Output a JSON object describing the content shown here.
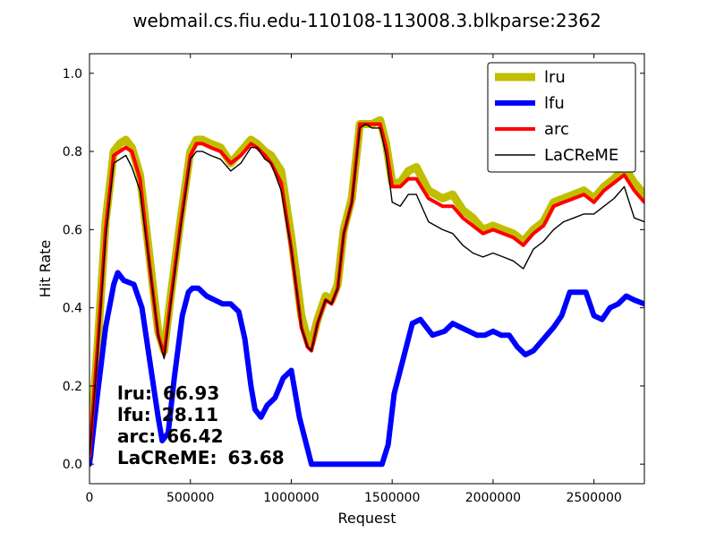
{
  "chart_data": {
    "type": "line",
    "title": "webmail.cs.fiu.edu-110108-113008.3.blkparse:2362",
    "xlabel": "Request",
    "ylabel": "Hit Rate",
    "xlim": [
      0,
      2750000
    ],
    "ylim": [
      -0.05,
      1.05
    ],
    "xticks": [
      0,
      500000,
      1000000,
      1500000,
      2000000,
      2500000
    ],
    "xtick_labels": [
      "0",
      "500000",
      "1000000",
      "1500000",
      "2000000",
      "2500000"
    ],
    "yticks": [
      0.0,
      0.2,
      0.4,
      0.6,
      0.8,
      1.0
    ],
    "ytick_labels": [
      "0.0",
      "0.2",
      "0.4",
      "0.6",
      "0.8",
      "1.0"
    ],
    "grid": false,
    "legend_position": "top-right",
    "series": [
      {
        "name": "lru",
        "color": "#bfbf00",
        "x": [
          0,
          40000,
          80000,
          120000,
          150000,
          180000,
          210000,
          250000,
          300000,
          340000,
          370000,
          400000,
          450000,
          500000,
          530000,
          560000,
          600000,
          650000,
          700000,
          750000,
          800000,
          830000,
          870000,
          900000,
          950000,
          1000000,
          1050000,
          1080000,
          1100000,
          1130000,
          1170000,
          1200000,
          1230000,
          1260000,
          1300000,
          1340000,
          1370000,
          1400000,
          1440000,
          1470000,
          1500000,
          1540000,
          1580000,
          1620000,
          1680000,
          1750000,
          1800000,
          1850000,
          1900000,
          1950000,
          2000000,
          2050000,
          2100000,
          2150000,
          2200000,
          2250000,
          2300000,
          2350000,
          2400000,
          2450000,
          2500000,
          2550000,
          2600000,
          2650000,
          2700000,
          2750000
        ],
        "y": [
          0.02,
          0.3,
          0.62,
          0.8,
          0.82,
          0.83,
          0.81,
          0.74,
          0.52,
          0.34,
          0.29,
          0.42,
          0.62,
          0.8,
          0.83,
          0.83,
          0.82,
          0.81,
          0.77,
          0.8,
          0.83,
          0.82,
          0.8,
          0.79,
          0.75,
          0.58,
          0.38,
          0.32,
          0.31,
          0.37,
          0.43,
          0.42,
          0.46,
          0.6,
          0.68,
          0.87,
          0.87,
          0.87,
          0.88,
          0.82,
          0.72,
          0.72,
          0.75,
          0.76,
          0.7,
          0.68,
          0.69,
          0.65,
          0.63,
          0.6,
          0.61,
          0.6,
          0.59,
          0.57,
          0.6,
          0.62,
          0.67,
          0.68,
          0.69,
          0.7,
          0.68,
          0.71,
          0.73,
          0.76,
          0.72,
          0.69
        ]
      },
      {
        "name": "lfu",
        "color": "#0000ff",
        "x": [
          0,
          40000,
          80000,
          120000,
          140000,
          170000,
          220000,
          260000,
          300000,
          340000,
          360000,
          390000,
          420000,
          460000,
          490000,
          510000,
          540000,
          580000,
          620000,
          660000,
          700000,
          740000,
          770000,
          800000,
          820000,
          850000,
          880000,
          920000,
          960000,
          1000000,
          1040000,
          1100000,
          1200000,
          1300000,
          1400000,
          1450000,
          1480000,
          1510000,
          1560000,
          1600000,
          1640000,
          1700000,
          1760000,
          1800000,
          1840000,
          1880000,
          1920000,
          1960000,
          2000000,
          2040000,
          2080000,
          2120000,
          2160000,
          2200000,
          2250000,
          2300000,
          2340000,
          2380000,
          2420000,
          2460000,
          2500000,
          2540000,
          2580000,
          2620000,
          2660000,
          2700000,
          2750000
        ],
        "y": [
          0.0,
          0.18,
          0.35,
          0.46,
          0.49,
          0.47,
          0.46,
          0.4,
          0.26,
          0.12,
          0.06,
          0.08,
          0.22,
          0.38,
          0.44,
          0.45,
          0.45,
          0.43,
          0.42,
          0.41,
          0.41,
          0.39,
          0.32,
          0.2,
          0.14,
          0.12,
          0.15,
          0.17,
          0.22,
          0.24,
          0.12,
          0.0,
          0.0,
          0.0,
          0.0,
          0.0,
          0.05,
          0.18,
          0.28,
          0.36,
          0.37,
          0.33,
          0.34,
          0.36,
          0.35,
          0.34,
          0.33,
          0.33,
          0.34,
          0.33,
          0.33,
          0.3,
          0.28,
          0.29,
          0.32,
          0.35,
          0.38,
          0.44,
          0.44,
          0.44,
          0.38,
          0.37,
          0.4,
          0.41,
          0.43,
          0.42,
          0.41
        ]
      },
      {
        "name": "arc",
        "color": "#ff0000",
        "x": [
          0,
          40000,
          80000,
          120000,
          150000,
          180000,
          210000,
          250000,
          300000,
          340000,
          370000,
          400000,
          450000,
          500000,
          530000,
          560000,
          600000,
          650000,
          700000,
          750000,
          800000,
          830000,
          870000,
          900000,
          950000,
          1000000,
          1050000,
          1080000,
          1100000,
          1130000,
          1170000,
          1200000,
          1230000,
          1260000,
          1300000,
          1340000,
          1370000,
          1400000,
          1440000,
          1470000,
          1500000,
          1540000,
          1580000,
          1620000,
          1680000,
          1750000,
          1800000,
          1850000,
          1900000,
          1950000,
          2000000,
          2050000,
          2100000,
          2150000,
          2200000,
          2250000,
          2300000,
          2350000,
          2400000,
          2450000,
          2500000,
          2550000,
          2600000,
          2650000,
          2700000,
          2750000
        ],
        "y": [
          0.02,
          0.3,
          0.6,
          0.79,
          0.8,
          0.81,
          0.8,
          0.73,
          0.5,
          0.33,
          0.28,
          0.41,
          0.61,
          0.79,
          0.82,
          0.82,
          0.81,
          0.8,
          0.77,
          0.79,
          0.82,
          0.81,
          0.79,
          0.77,
          0.72,
          0.55,
          0.35,
          0.3,
          0.29,
          0.36,
          0.42,
          0.41,
          0.45,
          0.59,
          0.67,
          0.87,
          0.87,
          0.87,
          0.87,
          0.81,
          0.71,
          0.71,
          0.73,
          0.73,
          0.68,
          0.66,
          0.66,
          0.63,
          0.61,
          0.59,
          0.6,
          0.59,
          0.58,
          0.56,
          0.59,
          0.61,
          0.66,
          0.67,
          0.68,
          0.69,
          0.67,
          0.7,
          0.72,
          0.74,
          0.7,
          0.67
        ]
      },
      {
        "name": "LaCReME",
        "color": "#000000",
        "x": [
          0,
          40000,
          80000,
          120000,
          150000,
          180000,
          210000,
          250000,
          300000,
          340000,
          370000,
          400000,
          450000,
          500000,
          530000,
          560000,
          600000,
          650000,
          700000,
          750000,
          800000,
          830000,
          870000,
          900000,
          950000,
          1000000,
          1050000,
          1080000,
          1100000,
          1130000,
          1170000,
          1200000,
          1230000,
          1260000,
          1300000,
          1340000,
          1370000,
          1400000,
          1440000,
          1470000,
          1500000,
          1540000,
          1580000,
          1620000,
          1680000,
          1750000,
          1800000,
          1850000,
          1900000,
          1950000,
          2000000,
          2050000,
          2100000,
          2150000,
          2200000,
          2250000,
          2300000,
          2350000,
          2400000,
          2450000,
          2500000,
          2550000,
          2600000,
          2650000,
          2700000,
          2750000
        ],
        "y": [
          0.02,
          0.28,
          0.58,
          0.77,
          0.78,
          0.79,
          0.76,
          0.7,
          0.5,
          0.33,
          0.27,
          0.4,
          0.6,
          0.78,
          0.8,
          0.8,
          0.79,
          0.78,
          0.75,
          0.77,
          0.81,
          0.81,
          0.78,
          0.77,
          0.7,
          0.55,
          0.35,
          0.3,
          0.29,
          0.36,
          0.42,
          0.41,
          0.45,
          0.59,
          0.67,
          0.86,
          0.87,
          0.86,
          0.86,
          0.79,
          0.67,
          0.66,
          0.69,
          0.69,
          0.62,
          0.6,
          0.59,
          0.56,
          0.54,
          0.53,
          0.54,
          0.53,
          0.52,
          0.5,
          0.55,
          0.57,
          0.6,
          0.62,
          0.63,
          0.64,
          0.64,
          0.66,
          0.68,
          0.71,
          0.63,
          0.62
        ]
      }
    ],
    "annotations": [
      {
        "label": "lru:",
        "value": "66.93"
      },
      {
        "label": "lfu:",
        "value": "28.11"
      },
      {
        "label": "arc:",
        "value": "66.42"
      },
      {
        "label": "LaCReME:",
        "value": "63.68"
      }
    ]
  }
}
